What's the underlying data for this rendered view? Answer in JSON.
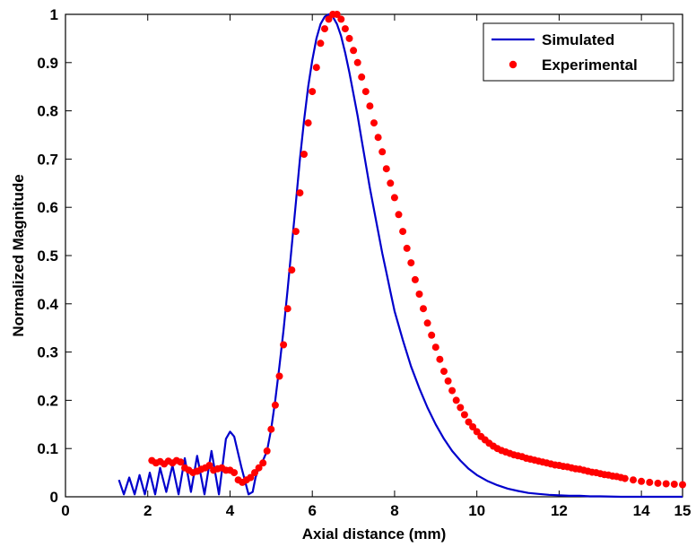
{
  "chart_data": {
    "type": "line",
    "xlabel": "Axial distance (mm)",
    "ylabel": "Normalized Magnitude",
    "xlim": [
      0,
      15
    ],
    "ylim": [
      0,
      1
    ],
    "xticks": [
      "0",
      "2",
      "4",
      "6",
      "8",
      "10",
      "12",
      "14",
      "15"
    ],
    "yticks": [
      "0",
      "0.1",
      "0.2",
      "0.3",
      "0.4",
      "0.5",
      "0.6",
      "0.7",
      "0.8",
      "0.9",
      "1"
    ],
    "grid": false,
    "legend_position": "top-right",
    "series": [
      {
        "name": "Simulated",
        "style": "line",
        "color": "#0000cc",
        "x": [
          1.3,
          1.42,
          1.55,
          1.68,
          1.8,
          1.93,
          2.05,
          2.18,
          2.3,
          2.45,
          2.6,
          2.75,
          2.9,
          3.05,
          3.2,
          3.38,
          3.55,
          3.73,
          3.9,
          4.0,
          4.1,
          4.28,
          4.45,
          4.55,
          4.62,
          4.7,
          4.8,
          4.9,
          5.0,
          5.1,
          5.2,
          5.3,
          5.4,
          5.5,
          5.6,
          5.7,
          5.8,
          5.9,
          6.0,
          6.1,
          6.2,
          6.3,
          6.4,
          6.5,
          6.6,
          6.7,
          6.8,
          6.9,
          7.0,
          7.1,
          7.2,
          7.3,
          7.4,
          7.5,
          7.6,
          7.7,
          7.8,
          7.9,
          8.0,
          8.2,
          8.4,
          8.6,
          8.8,
          9.0,
          9.2,
          9.4,
          9.6,
          9.8,
          10.0,
          10.25,
          10.5,
          10.75,
          11.0,
          11.25,
          11.5,
          11.75,
          12.0,
          12.25,
          12.5,
          12.75,
          13.0,
          13.5,
          14.0,
          14.5,
          15.0
        ],
        "y": [
          0.035,
          0.005,
          0.04,
          0.005,
          0.045,
          0.005,
          0.05,
          0.005,
          0.06,
          0.01,
          0.065,
          0.005,
          0.08,
          0.01,
          0.085,
          0.005,
          0.095,
          0.005,
          0.12,
          0.135,
          0.125,
          0.06,
          0.005,
          0.01,
          0.04,
          0.06,
          0.075,
          0.095,
          0.14,
          0.2,
          0.27,
          0.345,
          0.43,
          0.52,
          0.61,
          0.7,
          0.78,
          0.85,
          0.905,
          0.95,
          0.98,
          0.995,
          1.0,
          0.995,
          0.98,
          0.955,
          0.92,
          0.88,
          0.835,
          0.79,
          0.74,
          0.69,
          0.64,
          0.595,
          0.55,
          0.505,
          0.465,
          0.425,
          0.385,
          0.325,
          0.27,
          0.225,
          0.185,
          0.15,
          0.12,
          0.095,
          0.075,
          0.058,
          0.045,
          0.033,
          0.024,
          0.017,
          0.012,
          0.008,
          0.006,
          0.004,
          0.003,
          0.002,
          0.002,
          0.001,
          0.001,
          0.0,
          0.0,
          0.0,
          0.0
        ]
      },
      {
        "name": "Experimental",
        "style": "markers",
        "color": "#ff0000",
        "x": [
          2.1,
          2.2,
          2.3,
          2.4,
          2.5,
          2.6,
          2.7,
          2.8,
          2.9,
          3.0,
          3.1,
          3.2,
          3.3,
          3.4,
          3.5,
          3.6,
          3.7,
          3.8,
          3.9,
          4.0,
          4.1,
          4.2,
          4.3,
          4.4,
          4.5,
          4.6,
          4.7,
          4.8,
          4.9,
          5.0,
          5.1,
          5.2,
          5.3,
          5.4,
          5.5,
          5.6,
          5.7,
          5.8,
          5.9,
          6.0,
          6.1,
          6.2,
          6.3,
          6.4,
          6.5,
          6.6,
          6.7,
          6.8,
          6.9,
          7.0,
          7.1,
          7.2,
          7.3,
          7.4,
          7.5,
          7.6,
          7.7,
          7.8,
          7.9,
          8.0,
          8.1,
          8.2,
          8.3,
          8.4,
          8.5,
          8.6,
          8.7,
          8.8,
          8.9,
          9.0,
          9.1,
          9.2,
          9.3,
          9.4,
          9.5,
          9.6,
          9.7,
          9.8,
          9.9,
          10.0,
          10.1,
          10.2,
          10.3,
          10.4,
          10.5,
          10.6,
          10.7,
          10.8,
          10.9,
          11.0,
          11.1,
          11.2,
          11.3,
          11.4,
          11.5,
          11.6,
          11.7,
          11.8,
          11.9,
          12.0,
          12.1,
          12.2,
          12.3,
          12.4,
          12.5,
          12.6,
          12.7,
          12.8,
          12.9,
          13.0,
          13.1,
          13.2,
          13.3,
          13.4,
          13.5,
          13.6,
          13.8,
          14.0,
          14.2,
          14.4,
          14.6,
          14.8,
          15.0
        ],
        "y": [
          0.075,
          0.07,
          0.073,
          0.068,
          0.074,
          0.07,
          0.075,
          0.072,
          0.06,
          0.055,
          0.05,
          0.053,
          0.057,
          0.06,
          0.065,
          0.055,
          0.058,
          0.06,
          0.055,
          0.055,
          0.05,
          0.035,
          0.03,
          0.035,
          0.04,
          0.05,
          0.06,
          0.07,
          0.095,
          0.14,
          0.19,
          0.25,
          0.315,
          0.39,
          0.47,
          0.55,
          0.63,
          0.71,
          0.775,
          0.84,
          0.89,
          0.94,
          0.97,
          0.99,
          1.0,
          1.0,
          0.99,
          0.97,
          0.95,
          0.925,
          0.9,
          0.87,
          0.84,
          0.81,
          0.775,
          0.745,
          0.715,
          0.68,
          0.65,
          0.62,
          0.585,
          0.55,
          0.515,
          0.485,
          0.45,
          0.42,
          0.39,
          0.36,
          0.335,
          0.31,
          0.285,
          0.26,
          0.24,
          0.22,
          0.2,
          0.185,
          0.17,
          0.155,
          0.145,
          0.135,
          0.125,
          0.118,
          0.111,
          0.105,
          0.1,
          0.096,
          0.093,
          0.09,
          0.087,
          0.085,
          0.083,
          0.08,
          0.078,
          0.076,
          0.074,
          0.072,
          0.07,
          0.068,
          0.066,
          0.065,
          0.063,
          0.062,
          0.06,
          0.058,
          0.057,
          0.055,
          0.053,
          0.051,
          0.05,
          0.048,
          0.046,
          0.045,
          0.043,
          0.042,
          0.04,
          0.038,
          0.035,
          0.032,
          0.03,
          0.028,
          0.027,
          0.026,
          0.025
        ]
      }
    ]
  }
}
